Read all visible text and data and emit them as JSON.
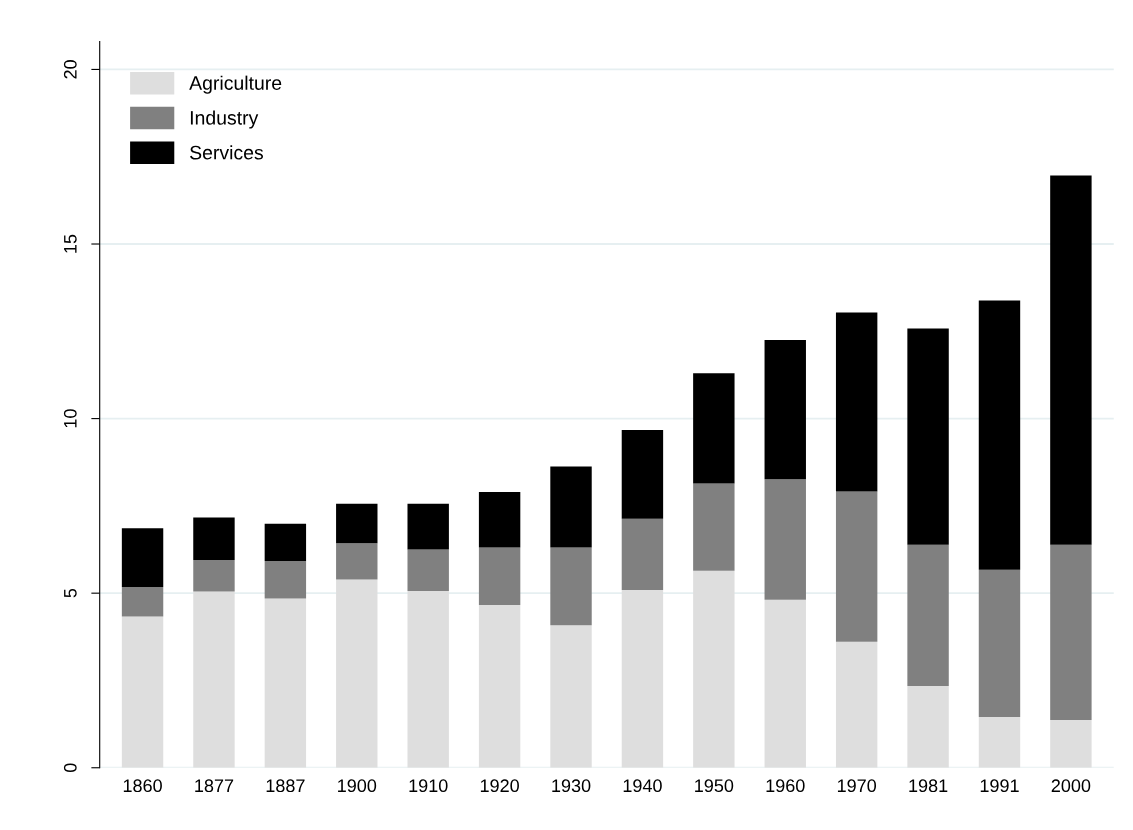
{
  "chart_data": {
    "type": "bar",
    "stacked": true,
    "categories": [
      "1860",
      "1877",
      "1887",
      "1900",
      "1910",
      "1920",
      "1930",
      "1940",
      "1950",
      "1960",
      "1970",
      "1981",
      "1991",
      "2000"
    ],
    "series": [
      {
        "name": "Agriculture",
        "color": "#dedede",
        "values": [
          4.33,
          5.05,
          4.85,
          5.39,
          5.06,
          4.66,
          4.08,
          5.09,
          5.64,
          4.81,
          3.61,
          2.34,
          1.45,
          1.37
        ]
      },
      {
        "name": "Industry",
        "color": "#808080",
        "values": [
          0.85,
          0.9,
          1.07,
          1.04,
          1.19,
          1.65,
          2.23,
          2.04,
          2.5,
          3.45,
          4.3,
          4.05,
          4.22,
          5.02
        ]
      },
      {
        "name": "Services",
        "color": "#000000",
        "values": [
          1.68,
          1.22,
          1.07,
          1.13,
          1.31,
          1.59,
          2.32,
          2.54,
          3.16,
          3.99,
          5.13,
          6.19,
          7.71,
          10.57
        ]
      }
    ],
    "ylim": [
      0,
      20.8
    ],
    "yticks": [
      0,
      5,
      10,
      15,
      20
    ],
    "grid": "y",
    "legend": "top left"
  }
}
